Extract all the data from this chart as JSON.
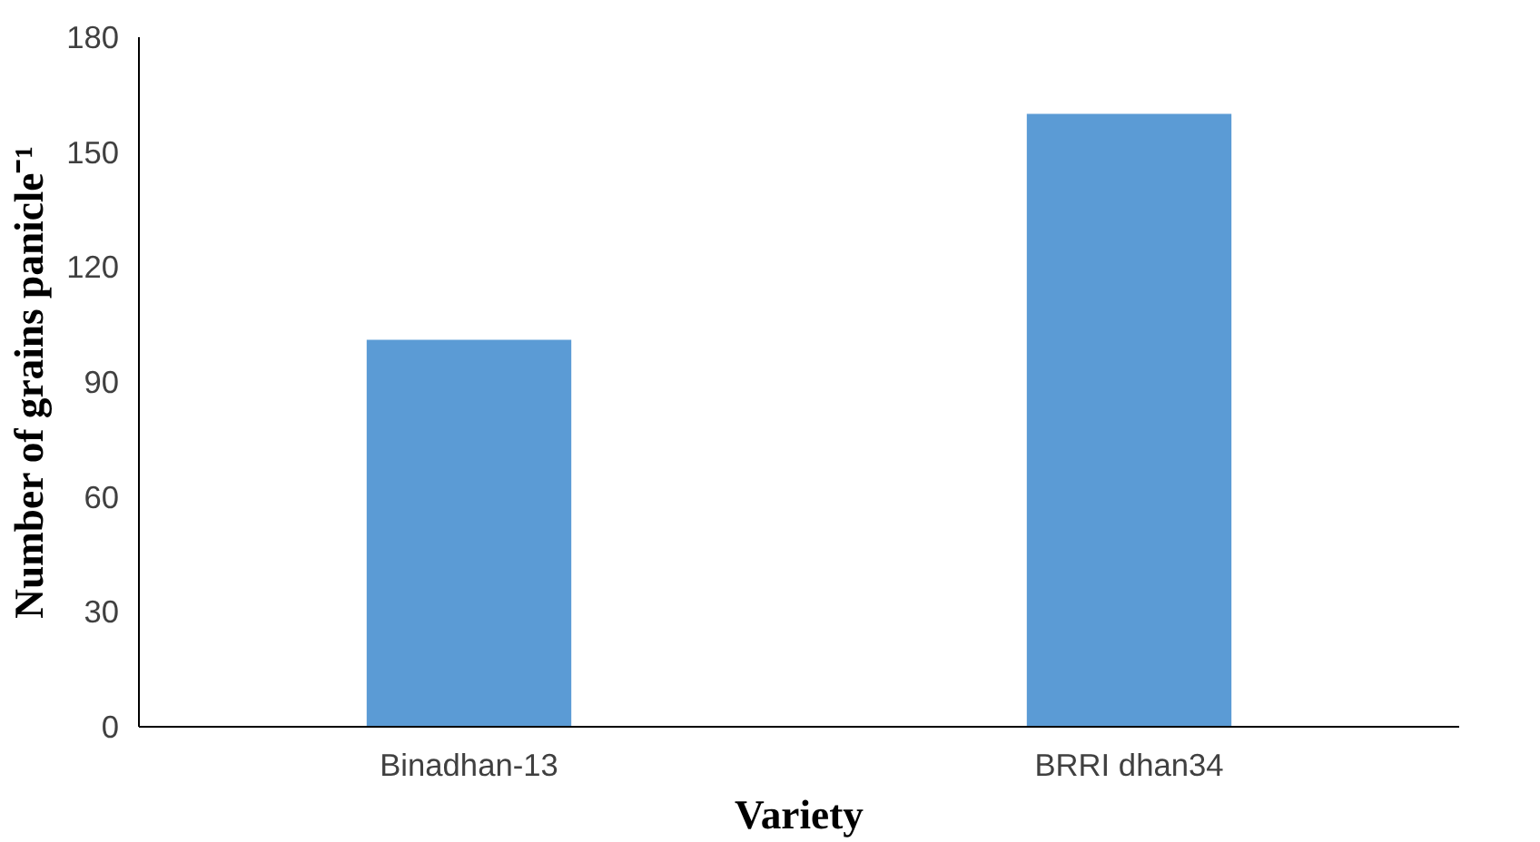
{
  "chart_data": {
    "type": "bar",
    "xlabel": "Variety",
    "ylabel": "Number of grains panicle⁻¹",
    "categories": [
      "Binadhan-13",
      "BRRI dhan34"
    ],
    "values": [
      101,
      160
    ],
    "color": "#5b9bd5",
    "ylim": [
      0,
      180
    ],
    "yticks": [
      0,
      30,
      60,
      90,
      120,
      150,
      180
    ],
    "grid": false
  }
}
